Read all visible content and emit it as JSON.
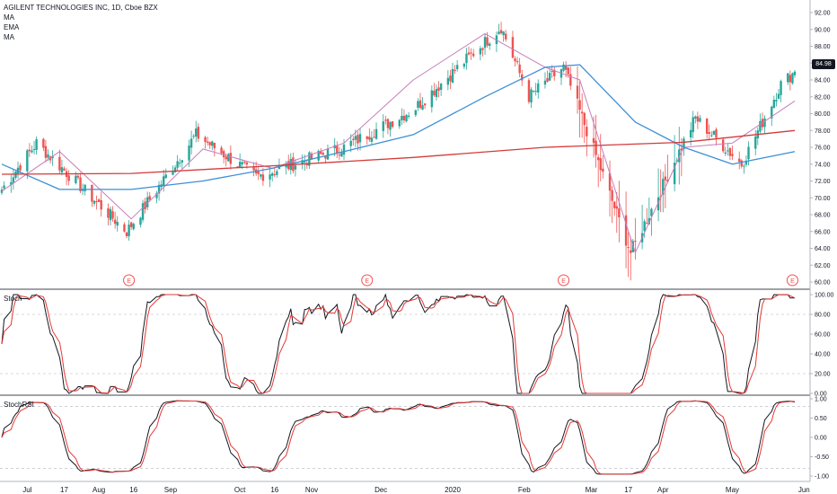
{
  "legend": {
    "symbol": "AGILENT TECHNOLOGIES INC, 1D, Cboe BZX",
    "indicators": [
      "MA",
      "EMA",
      "MA"
    ]
  },
  "last_price_label": "84.98",
  "panes": {
    "stoch_title": "Stoch",
    "stochrsi_title": "StochRSI"
  },
  "price_axis_ticks": [
    "92.00",
    "90.00",
    "88.00",
    "86.00",
    "84.00",
    "82.00",
    "80.00",
    "78.00",
    "76.00",
    "74.00",
    "72.00",
    "70.00",
    "68.00",
    "66.00",
    "64.00",
    "62.00",
    "60.00"
  ],
  "stoch_axis_ticks": [
    "100.00",
    "80.00",
    "60.00",
    "40.00",
    "20.00",
    "0.00"
  ],
  "stochrsi_axis_ticks": [
    "1.00",
    "0.50",
    "0.00",
    "-0.50",
    "-1.00"
  ],
  "time_axis_ticks": [
    "Jul",
    "17",
    "Aug",
    "16",
    "Sep",
    "Oct",
    "16",
    "Nov",
    "Dec",
    "2020",
    "Feb",
    "Mar",
    "17",
    "Apr",
    "May",
    "Jun"
  ],
  "earnings_marker_label": "E",
  "colors": {
    "up": "#26a69a",
    "down": "#ef5350",
    "ma_fast": "#c77dbd",
    "ema": "#3d8fd6",
    "ma_slow": "#d43a3a",
    "stoch_k": "#131722",
    "stoch_d": "#e53935"
  },
  "chart_data": {
    "type": "candlestick",
    "title": "AGILENT TECHNOLOGIES INC, 1D, Cboe BZX",
    "ylim": [
      60,
      92
    ],
    "series": [
      {
        "name": "MA",
        "x": [
          "2019-06-20",
          "2019-07-15",
          "2019-08-15",
          "2019-09-15",
          "2019-10-15",
          "2019-11-15",
          "2019-12-15",
          "2020-01-15",
          "2020-02-10",
          "2020-02-25",
          "2020-03-20",
          "2020-04-10",
          "2020-05-01",
          "2020-05-28"
        ],
        "values": [
          70.8,
          75.5,
          67.5,
          75.8,
          73.5,
          76.5,
          84.0,
          89.5,
          85.5,
          84.0,
          63.5,
          76.0,
          76.5,
          81.5
        ]
      },
      {
        "name": "EMA",
        "x": [
          "2019-06-20",
          "2019-07-15",
          "2019-08-15",
          "2019-09-15",
          "2019-10-15",
          "2019-11-15",
          "2019-12-15",
          "2020-01-15",
          "2020-02-10",
          "2020-02-25",
          "2020-03-20",
          "2020-04-10",
          "2020-05-01",
          "2020-05-28"
        ],
        "values": [
          74.0,
          71.0,
          71.0,
          72.0,
          73.5,
          75.5,
          77.5,
          82.0,
          85.5,
          85.8,
          79.0,
          76.0,
          74.0,
          75.5
        ]
      },
      {
        "name": "MA",
        "x": [
          "2019-06-20",
          "2019-08-15",
          "2019-10-15",
          "2019-12-15",
          "2020-02-10",
          "2020-04-10",
          "2020-05-28"
        ],
        "values": [
          72.8,
          72.9,
          73.8,
          74.8,
          76.0,
          76.6,
          78.0
        ]
      }
    ],
    "candles": {
      "last_close": 84.98,
      "start": "2019-06-20",
      "end": "2020-05-28",
      "key_prices": [
        {
          "date": "2019-06-20",
          "close": 71.0
        },
        {
          "date": "2019-07-05",
          "close": 76.5
        },
        {
          "date": "2019-08-13",
          "close": 66.0
        },
        {
          "date": "2019-09-12",
          "close": 77.5
        },
        {
          "date": "2019-10-08",
          "close": 72.5
        },
        {
          "date": "2019-11-15",
          "close": 76.0
        },
        {
          "date": "2019-12-15",
          "close": 80.5
        },
        {
          "date": "2020-01-22",
          "close": 90.3
        },
        {
          "date": "2020-02-03",
          "close": 82.0
        },
        {
          "date": "2020-02-18",
          "close": 85.5
        },
        {
          "date": "2020-03-03",
          "close": 75.0
        },
        {
          "date": "2020-03-18",
          "close": 63.5
        },
        {
          "date": "2020-04-15",
          "close": 79.5
        },
        {
          "date": "2020-05-05",
          "close": 74.0
        },
        {
          "date": "2020-05-22",
          "close": 83.5
        },
        {
          "date": "2020-05-28",
          "close": 84.98
        }
      ]
    },
    "earnings_dates": [
      "2019-08-14",
      "2019-11-25",
      "2020-02-18",
      "2020-05-27"
    ],
    "stoch": {
      "ylim": [
        0,
        100
      ]
    },
    "stochrsi": {
      "ylim": [
        -1,
        1
      ]
    }
  }
}
